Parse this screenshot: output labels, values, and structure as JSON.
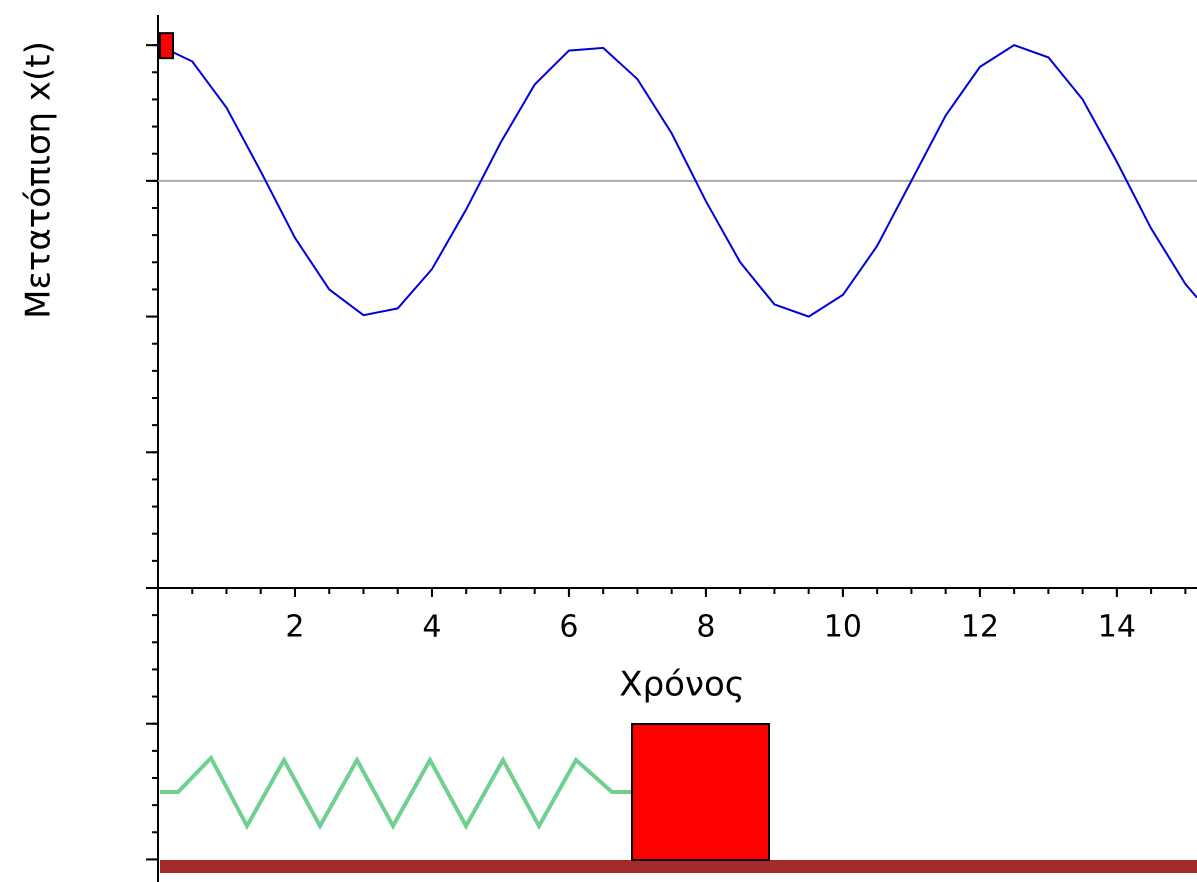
{
  "chart_data": {
    "type": "line",
    "x_label": "Χρόνος",
    "y_label": "Μετατόπιση x(t)",
    "x": [
      0,
      0.5,
      1,
      1.5,
      2,
      2.5,
      3,
      3.5,
      4,
      4.5,
      5,
      5.5,
      6,
      6.5,
      7,
      7.5,
      8,
      8.5,
      9,
      9.5,
      10,
      10.5,
      11,
      11.5,
      12,
      12.5,
      13,
      13.5,
      14,
      14.5,
      15,
      15.17
    ],
    "series": [
      {
        "color": "#0000dd",
        "values": [
          1,
          0.88,
          0.54,
          0.07,
          -0.42,
          -0.8,
          -0.99,
          -0.94,
          -0.65,
          -0.21,
          0.28,
          0.71,
          0.96,
          0.98,
          0.75,
          0.35,
          -0.15,
          -0.6,
          -0.91,
          -1,
          -0.84,
          -0.48,
          0,
          0.48,
          0.84,
          1,
          0.91,
          0.6,
          0.14,
          -0.35,
          -0.76,
          -0.86
        ]
      }
    ],
    "marker": {
      "x": 0,
      "y": 1,
      "color": "#ff0000"
    },
    "xlim": [
      0,
      15.17
    ],
    "ylim": [
      -3,
      1.2
    ],
    "xticks": [
      2,
      4,
      6,
      8,
      10,
      12,
      14
    ],
    "yticks": [
      -3,
      -2,
      -1,
      0,
      1
    ],
    "zero_line": true
  }
}
